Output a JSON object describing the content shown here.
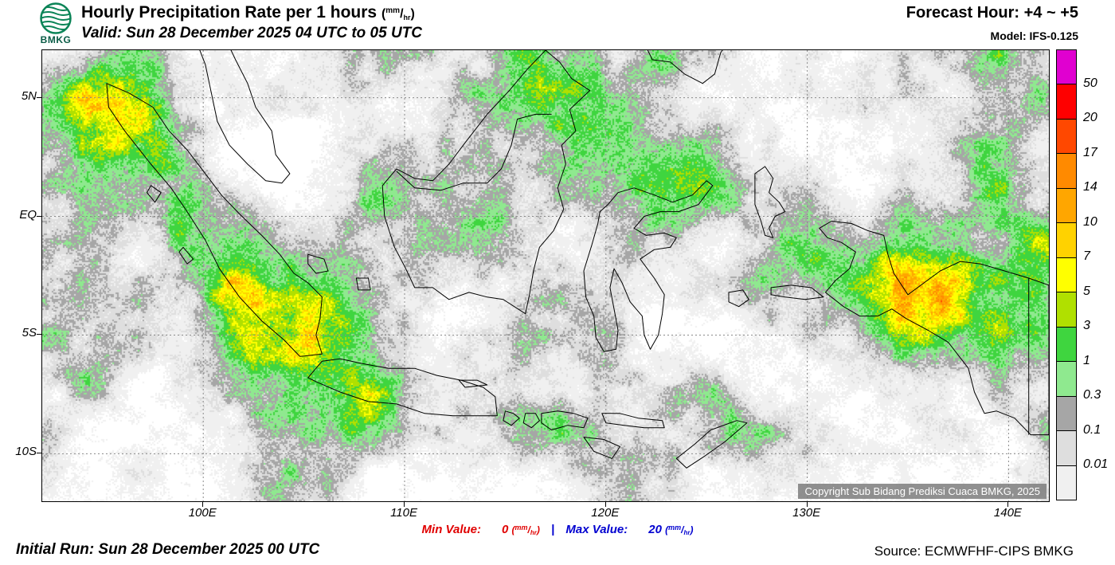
{
  "header": {
    "logo_label": "BMKG",
    "title": "Hourly Precipitation Rate per 1 hours",
    "unit": {
      "open": "(",
      "numerator": "mm",
      "slash": "/",
      "denominator": "hr",
      "close": ")"
    },
    "valid_line": "Valid: Sun 28 December 2025 04 UTC to 05 UTC",
    "forecast_hour": "Forecast Hour: +4 ~ +5",
    "model": "Model: IFS-0.125"
  },
  "map": {
    "extent": {
      "lon_min": 92,
      "lon_max": 142,
      "lat_min": -12,
      "lat_max": 7
    },
    "lat_ticks": [
      {
        "label": "5N",
        "lat": 5
      },
      {
        "label": "EQ",
        "lat": 0
      },
      {
        "label": "5S",
        "lat": -5
      },
      {
        "label": "10S",
        "lat": -10
      }
    ],
    "lon_ticks": [
      {
        "label": "100E",
        "lon": 100
      },
      {
        "label": "110E",
        "lon": 110
      },
      {
        "label": "120E",
        "lon": 120
      },
      {
        "label": "130E",
        "lon": 130
      },
      {
        "label": "140E",
        "lon": 140
      }
    ],
    "copyright": "Copyright Sub Bidang Prediksi Cuaca BMKG, 2025"
  },
  "colorbar": {
    "labels": [
      "50",
      "20",
      "17",
      "14",
      "10",
      "7",
      "5",
      "3",
      "1",
      "0.3",
      "0.1",
      "0.01"
    ],
    "colors": [
      "#e000d0",
      "#fe0000",
      "#ff4800",
      "#ff8a00",
      "#ffa600",
      "#ffd200",
      "#ffff00",
      "#b0e000",
      "#3fd53f",
      "#8fe98f",
      "#a6a6a6",
      "#dedede",
      "#f0f0f0"
    ]
  },
  "footer": {
    "min_label": "Min Value:",
    "min_value": "0",
    "separator": "|",
    "max_label": "Max Value:",
    "max_value": "20",
    "unit": {
      "open": "(",
      "numerator": "mm",
      "slash": "/",
      "denominator": "hr",
      "close": ")"
    },
    "min_color": "#e00000",
    "max_color": "#0000d0",
    "initial_run": "Initial Run: Sun 28 December 2025 00 UTC",
    "source": "Source: ECMWFHF-CIPS BMKG"
  }
}
